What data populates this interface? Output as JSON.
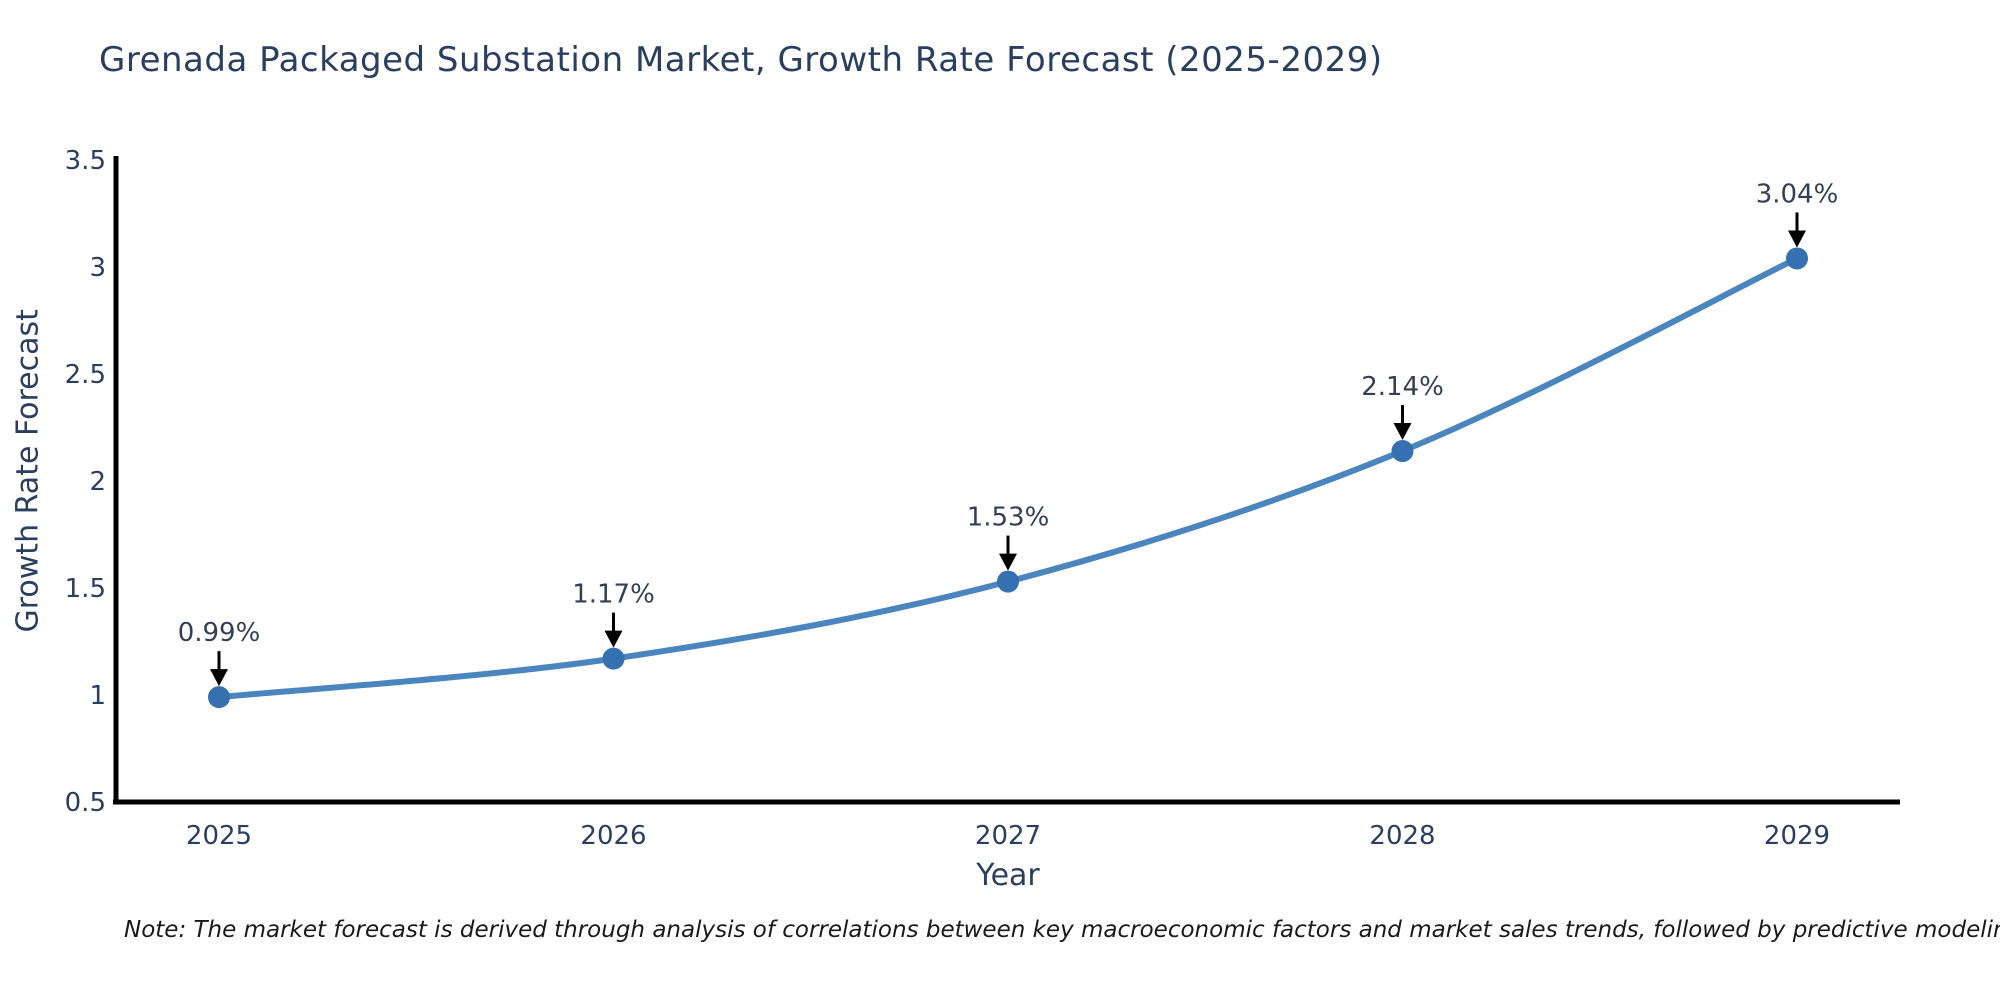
{
  "title": "Grenada Packaged Substation Market, Growth Rate Forecast (2025-2029)",
  "note": "Note: The market forecast is derived through analysis of correlations between key macroeconomic factors and market sales trends, followed by predictive modeling to project future sales",
  "chart_data": {
    "type": "line",
    "title": "Grenada Packaged Substation Market, Growth Rate Forecast (2025-2029)",
    "xlabel": "Year",
    "ylabel": "Growth Rate Forecast",
    "x": [
      2025,
      2026,
      2027,
      2028,
      2029
    ],
    "values": [
      0.99,
      1.17,
      1.53,
      2.14,
      3.04
    ],
    "point_labels": [
      "0.99%",
      "1.17%",
      "1.53%",
      "2.14%",
      "3.04%"
    ],
    "xtick_labels": [
      "2025",
      "2026",
      "2027",
      "2028",
      "2029"
    ],
    "ytick_values": [
      0.5,
      1,
      1.5,
      2,
      2.5,
      3,
      3.5
    ],
    "ytick_labels": [
      "0.5",
      "1",
      "1.5",
      "2",
      "2.5",
      "3",
      "3.5"
    ],
    "ylim": [
      0.5,
      3.5
    ],
    "grid": false,
    "legend_position": "none",
    "line_color": "#4a86bd",
    "marker_color": "#3571b1",
    "axis_color": "#000000",
    "text_color": "#2a3f5f",
    "annotation_color": "#333f52",
    "arrow_color": "#000000"
  }
}
